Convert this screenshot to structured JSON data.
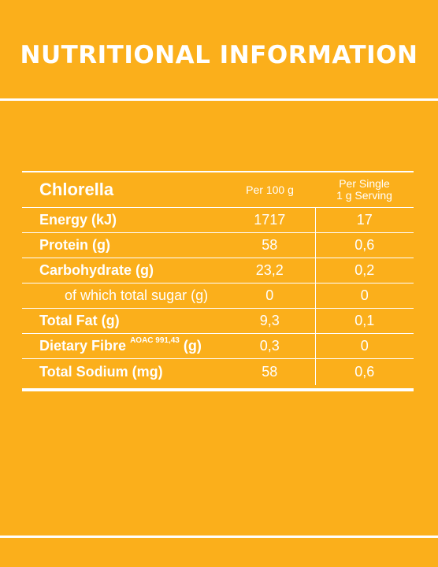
{
  "title": "NUTRITIONAL INFORMATION",
  "table": {
    "product": "Chlorella",
    "col_per100": "Per 100 g",
    "col_serving_line1": "Per Single",
    "col_serving_line2": "1 g Serving",
    "rows": [
      {
        "label": "Energy (kJ)",
        "per100": "1717",
        "serving": "17"
      },
      {
        "label": "Protein (g)",
        "per100": "58",
        "serving": "0,6"
      },
      {
        "label": "Carbohydrate (g)",
        "per100": "23,2",
        "serving": "0,2"
      },
      {
        "label": "of which total sugar (g)",
        "per100": "0",
        "serving": "0"
      },
      {
        "label": "Total Fat (g)",
        "per100": "9,3",
        "serving": "0,1"
      },
      {
        "label": "Dietary Fibre",
        "label_sup": "AOAC 991,43",
        "label_suffix": "(g)",
        "per100": "0,3",
        "serving": "0"
      },
      {
        "label": "Total Sodium (mg)",
        "per100": "58",
        "serving": "0,6"
      }
    ]
  }
}
